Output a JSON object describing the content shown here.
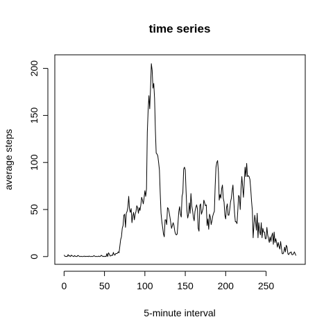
{
  "chart_data": {
    "type": "line",
    "title": "time series",
    "xlabel": "5-minute interval",
    "ylabel": "average steps",
    "xlim": [
      -11.48,
      298.48
    ],
    "ylim": [
      -8.25,
      214.45
    ],
    "x_ticks": [
      0,
      50,
      100,
      150,
      200,
      250
    ],
    "y_ticks": [
      0,
      50,
      100,
      150,
      200
    ],
    "x_tick_labels": [
      "0",
      "50",
      "100",
      "150",
      "200",
      "250"
    ],
    "y_tick_labels": [
      "0",
      "50",
      "100",
      "150",
      "200"
    ],
    "line_color": "#000000",
    "grid": false,
    "x": [
      0,
      1,
      2,
      3,
      4,
      5,
      6,
      7,
      8,
      9,
      10,
      11,
      12,
      13,
      14,
      15,
      16,
      17,
      18,
      19,
      20,
      21,
      22,
      23,
      24,
      25,
      26,
      27,
      28,
      29,
      30,
      31,
      32,
      33,
      34,
      35,
      36,
      37,
      38,
      39,
      40,
      41,
      42,
      43,
      44,
      45,
      46,
      47,
      48,
      49,
      50,
      51,
      52,
      53,
      54,
      55,
      56,
      57,
      58,
      59,
      60,
      61,
      62,
      63,
      64,
      65,
      66,
      67,
      68,
      69,
      70,
      71,
      72,
      73,
      74,
      75,
      76,
      77,
      78,
      79,
      80,
      81,
      82,
      83,
      84,
      85,
      86,
      87,
      88,
      89,
      90,
      91,
      92,
      93,
      94,
      95,
      96,
      97,
      98,
      99,
      100,
      101,
      102,
      103,
      104,
      105,
      106,
      107,
      108,
      109,
      110,
      111,
      112,
      113,
      114,
      115,
      116,
      117,
      118,
      119,
      120,
      121,
      122,
      123,
      124,
      125,
      126,
      127,
      128,
      129,
      130,
      131,
      132,
      133,
      134,
      135,
      136,
      137,
      138,
      139,
      140,
      141,
      142,
      143,
      144,
      145,
      146,
      147,
      148,
      149,
      150,
      151,
      152,
      153,
      154,
      155,
      156,
      157,
      158,
      159,
      160,
      161,
      162,
      163,
      164,
      165,
      166,
      167,
      168,
      169,
      170,
      171,
      172,
      173,
      174,
      175,
      176,
      177,
      178,
      179,
      180,
      181,
      182,
      183,
      184,
      185,
      186,
      187,
      188,
      189,
      190,
      191,
      192,
      193,
      194,
      195,
      196,
      197,
      198,
      199,
      200,
      201,
      202,
      203,
      204,
      205,
      206,
      207,
      208,
      209,
      210,
      211,
      212,
      213,
      214,
      215,
      216,
      217,
      218,
      219,
      220,
      221,
      222,
      223,
      224,
      225,
      226,
      227,
      228,
      229,
      230,
      231,
      232,
      233,
      234,
      235,
      236,
      237,
      238,
      239,
      240,
      241,
      242,
      243,
      244,
      245,
      246,
      247,
      248,
      249,
      250,
      251,
      252,
      253,
      254,
      255,
      256,
      257,
      258,
      259,
      260,
      261,
      262,
      263,
      264,
      265,
      266,
      267,
      268,
      269,
      270,
      271,
      272,
      273,
      274,
      275,
      276,
      277,
      278,
      279,
      280,
      281,
      282,
      283,
      284,
      285,
      286,
      287
    ],
    "y": [
      1.7,
      0.3,
      0.1,
      0.2,
      0.1,
      2.1,
      0.5,
      0.9,
      0,
      1.5,
      0.8,
      0.4,
      0,
      1.1,
      0.3,
      0.2,
      0,
      1.2,
      0.8,
      0.1,
      0,
      0.3,
      0,
      0,
      0.2,
      0.5,
      0,
      0.3,
      0.1,
      0.3,
      0,
      0.6,
      0.1,
      0,
      0.2,
      0,
      0.3,
      1,
      0.4,
      0,
      0.2,
      0,
      0.1,
      0.5,
      0,
      0.2,
      1.4,
      0.8,
      0,
      0.3,
      0,
      0.4,
      0,
      3.2,
      0,
      4,
      2.6,
      0.6,
      0.8,
      1.6,
      1.2,
      4.4,
      2.1,
      1.5,
      3.3,
      3.2,
      3.5,
      5,
      4,
      11,
      18,
      21,
      30,
      33,
      44,
      45,
      31,
      46,
      48,
      53,
      64,
      50,
      47,
      51,
      36,
      43,
      47,
      39,
      45,
      48,
      54,
      52,
      46,
      52,
      49,
      55,
      63,
      60,
      56,
      62,
      70,
      64,
      72,
      132,
      155,
      171,
      157,
      179,
      205,
      198,
      179,
      184,
      168,
      134,
      110,
      109,
      107,
      100,
      92,
      67,
      46,
      37,
      31,
      24,
      21,
      39,
      39,
      34,
      52,
      51,
      47,
      42,
      36,
      30,
      33,
      36,
      33,
      27,
      24,
      23,
      24,
      36,
      48,
      53,
      45,
      42,
      64,
      68,
      93,
      95,
      92,
      69,
      49,
      41,
      45,
      57,
      46,
      67,
      54,
      49,
      42,
      38,
      48,
      52,
      55,
      51,
      30,
      27,
      54,
      56,
      45,
      48,
      51,
      60,
      57,
      54,
      55,
      33,
      40,
      29,
      45,
      42,
      34,
      38,
      43,
      46,
      48,
      75,
      95,
      100,
      102,
      90,
      60,
      66,
      62,
      72,
      76,
      62,
      58,
      44,
      40,
      52,
      56,
      44,
      44,
      50,
      58,
      62,
      70,
      76,
      60,
      46,
      37,
      37,
      35,
      49,
      65,
      63,
      50,
      72,
      85,
      74,
      63,
      79,
      95,
      85,
      99,
      85,
      86,
      85,
      82,
      72,
      59,
      49,
      20,
      34,
      44,
      37,
      28,
      46,
      20,
      36,
      27,
      23,
      36,
      20,
      30,
      26,
      26,
      19,
      19,
      31,
      23,
      19,
      15,
      21,
      16,
      22,
      25,
      13,
      26,
      15,
      19,
      15,
      10,
      15,
      11,
      8,
      16,
      9,
      3,
      3,
      5,
      10,
      5,
      12,
      10,
      3,
      2,
      4,
      4,
      5,
      2,
      2,
      3,
      5,
      3,
      1
    ]
  }
}
